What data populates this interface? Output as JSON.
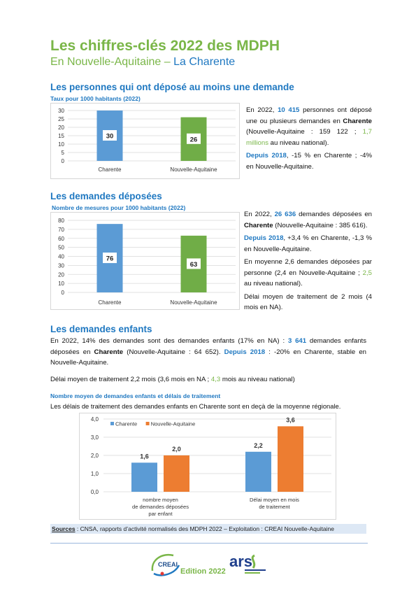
{
  "header": {
    "title": "Les chiffres-clés 2022 des MDPH",
    "subtitle_region": "En Nouvelle-Aquitaine – ",
    "subtitle_dept": "La Charente"
  },
  "section1": {
    "heading": "Les personnes qui ont déposé au moins une demande",
    "chart_title": "Taux pour 1000 habitants (2022)",
    "p1": {
      "a": "En 2022, ",
      "b": "10 415",
      "c": " personnes ont déposé une ou plusieurs demandes en ",
      "d": "Charente",
      "e": " (Nouvelle-Aquitaine : 159 122 ; ",
      "f": "1,7 millions",
      "g": " au niveau national)."
    },
    "p2": {
      "a": "Depuis 2018",
      "b": ", -15 % en Charente ; -4% en Nouvelle-Aquitaine."
    }
  },
  "section2": {
    "heading": "Les demandes déposées",
    "chart_title": "Nombre de mesures pour 1000 habitants (2022)",
    "p1": {
      "a": "En 2022, ",
      "b": "26 636",
      "c": " demandes déposées en ",
      "d": "Charente",
      "e": " (Nouvelle-Aquitaine : 385 616)."
    },
    "p2": {
      "a": "Depuis 2018",
      "b": ", +3,4 % en Charente, -1,3 % en Nouvelle-Aquitaine."
    },
    "p3": {
      "a": "En moyenne 2,6 demandes déposées par personne (2,4 en Nouvelle-Aquitaine ; ",
      "b": "2,5",
      "c": " au niveau national)."
    },
    "p4": "Délai moyen de traitement de 2 mois (4 mois en NA)."
  },
  "section3": {
    "heading": "Les demandes enfants",
    "p1": {
      "a": "En 2022, 14% des demandes sont des demandes enfants (17% en NA) : ",
      "b": "3 641",
      "c": " demandes enfants déposées en ",
      "d": "Charente",
      "e": " (Nouvelle-Aquitaine : 64 652). ",
      "f": "Depuis 2018",
      "g": " : -20% en Charente, stable en Nouvelle-Aquitaine."
    },
    "p2": {
      "a": "Délai moyen de traitement 2,2 mois (3,6 mois en NA ; ",
      "b": "4,3",
      "c": " mois au niveau national)"
    },
    "chart_title": "Nombre moyen de demandes enfants et délais de traitement",
    "chart_caption": "Les délais de traitement des demandes enfants en Charente sont en deçà de la moyenne régionale."
  },
  "sources": {
    "label": "Sources",
    "text": " : CNSA, rapports d’activité normalisés des MDPH 2022 – Exploitation : CREAI Nouvelle-Aquitaine"
  },
  "footer": {
    "edition": "Edition 2022",
    "logo_creai": "CREAI",
    "logo_ars": "ars"
  },
  "colors": {
    "blue": "#5b9bd5",
    "green": "#70ad47",
    "orange": "#ed7d31",
    "title_green": "#7ab648",
    "heading_blue": "#1f78c1"
  },
  "chart_data": [
    {
      "type": "bar",
      "categories": [
        "Charente",
        "Nouvelle-Aquitaine"
      ],
      "values": [
        30,
        26
      ],
      "value_labels": [
        "30",
        "26"
      ],
      "ylim": [
        0,
        30
      ],
      "yticks": [
        "0",
        "5",
        "10",
        "15",
        "20",
        "25",
        "30"
      ],
      "colors": [
        "#5b9bd5",
        "#70ad47"
      ],
      "grid": true
    },
    {
      "type": "bar",
      "categories": [
        "Charente",
        "Nouvelle-Aquitaine"
      ],
      "values": [
        76,
        63
      ],
      "value_labels": [
        "76",
        "63"
      ],
      "ylim": [
        0,
        80
      ],
      "yticks": [
        "0",
        "10",
        "20",
        "30",
        "40",
        "50",
        "60",
        "70",
        "80"
      ],
      "colors": [
        "#5b9bd5",
        "#70ad47"
      ],
      "grid": true
    },
    {
      "type": "bar",
      "categories": [
        [
          "nombre moyen",
          "de demandes déposées",
          "par enfant"
        ],
        [
          "Délai moyen en mois",
          "de traitement"
        ]
      ],
      "series": [
        {
          "name": "Charente",
          "values": [
            1.6,
            2.2
          ],
          "labels": [
            "1,6",
            "2,2"
          ],
          "color": "#5b9bd5"
        },
        {
          "name": "Nouvelle-Aquitaine",
          "values": [
            2.0,
            3.6
          ],
          "labels": [
            "2,0",
            "3,6"
          ],
          "color": "#ed7d31"
        }
      ],
      "ylim": [
        0,
        4
      ],
      "yticks": [
        "0,0",
        "1,0",
        "2,0",
        "3,0",
        "4,0"
      ],
      "legend": "top-left",
      "grid": true
    }
  ]
}
